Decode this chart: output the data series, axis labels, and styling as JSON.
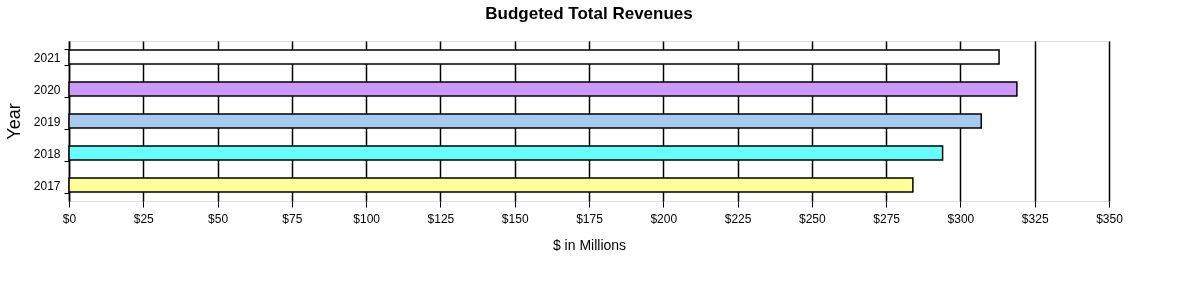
{
  "chart_data": {
    "type": "bar",
    "orientation": "horizontal",
    "title": "Budgeted Total Revenues",
    "xlabel": "$ in Millions",
    "ylabel": "Year",
    "categories": [
      "2021",
      "2020",
      "2019",
      "2018",
      "2017"
    ],
    "values": [
      313,
      319,
      307,
      294,
      284
    ],
    "colors": [
      "#ffffff",
      "#cc99ff",
      "#a6caf0",
      "#66ffff",
      "#ffff99"
    ],
    "xlim": [
      0,
      350
    ],
    "xticks": [
      {
        "value": 0,
        "label": "$0"
      },
      {
        "value": 25,
        "label": "$25"
      },
      {
        "value": 50,
        "label": "$50"
      },
      {
        "value": 75,
        "label": "$75"
      },
      {
        "value": 100,
        "label": "$100"
      },
      {
        "value": 125,
        "label": "$125"
      },
      {
        "value": 150,
        "label": "$150"
      },
      {
        "value": 175,
        "label": "$175"
      },
      {
        "value": 200,
        "label": "$200"
      },
      {
        "value": 225,
        "label": "$225"
      },
      {
        "value": 250,
        "label": "$250"
      },
      {
        "value": 275,
        "label": "$275"
      },
      {
        "value": 300,
        "label": "$300"
      },
      {
        "value": 325,
        "label": "$325"
      },
      {
        "value": 350,
        "label": "$350"
      }
    ],
    "grid": "x",
    "legend": false
  }
}
